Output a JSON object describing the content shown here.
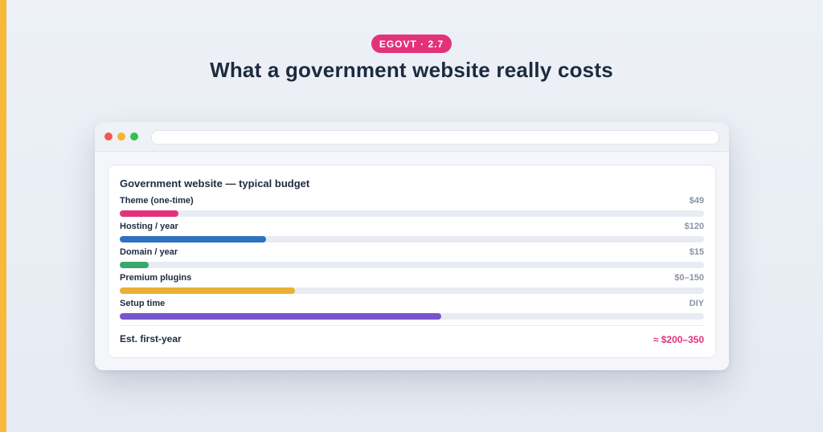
{
  "badge": "EGOVT · 2.7",
  "title": "What a government website really costs",
  "colors": {
    "accent_bar": "#f6b93b",
    "badge": "#e2337a",
    "total": "#e2337a"
  },
  "window": {
    "controls": [
      "close-dot",
      "minimize-dot",
      "maximize-dot"
    ],
    "address_bar": ""
  },
  "card": {
    "title": "Government website — typical budget",
    "items": [
      {
        "label": "Theme (one-time)",
        "value": "$49",
        "bar_fraction": 0.1,
        "color": "#e2337a"
      },
      {
        "label": "Hosting / year",
        "value": "$120",
        "bar_fraction": 0.25,
        "color": "#2f72c0"
      },
      {
        "label": "Domain / year",
        "value": "$15",
        "bar_fraction": 0.05,
        "color": "#3aa76d"
      },
      {
        "label": "Premium plugins",
        "value": "$0–150",
        "bar_fraction": 0.3,
        "color": "#eab035"
      },
      {
        "label": "Setup time",
        "value": "DIY",
        "bar_fraction": 0.55,
        "color": "#7755cc"
      }
    ],
    "total_label": "Est. first-year",
    "total_value": "≈ $200–350"
  }
}
